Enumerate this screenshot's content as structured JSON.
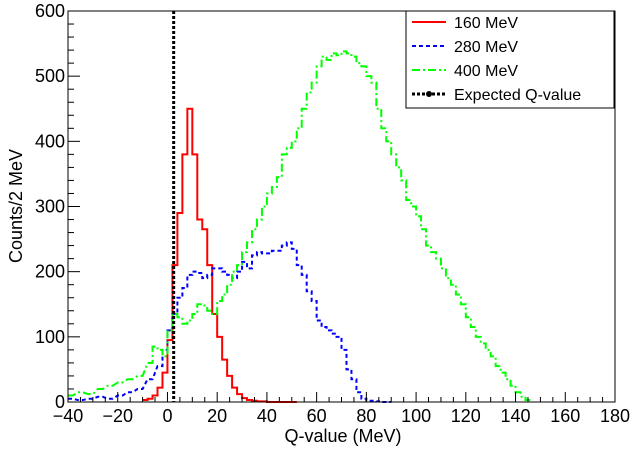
{
  "chart_data": {
    "type": "line",
    "step": true,
    "xlabel": "Q-value (MeV)",
    "ylabel": "Counts/2 MeV",
    "xlim": [
      -40,
      180
    ],
    "ylim": [
      0,
      600
    ],
    "x_ticks": [
      -40,
      -20,
      0,
      20,
      40,
      60,
      80,
      100,
      120,
      140,
      160,
      180
    ],
    "y_ticks": [
      0,
      100,
      200,
      300,
      400,
      500,
      600
    ],
    "grid": false,
    "legend_position": "top-right",
    "bin_width": 2,
    "vline": {
      "label": "Expected Q-value",
      "x": 2.5,
      "color": "#000000"
    },
    "series": [
      {
        "name": "160 MeV",
        "color": "#ff0000",
        "dash": "solid",
        "x": [
          -10,
          -8,
          -6,
          -4,
          -2,
          0,
          2,
          4,
          6,
          8,
          10,
          12,
          14,
          16,
          18,
          20,
          22,
          24,
          26,
          28,
          30,
          32,
          34,
          36,
          38,
          40,
          42,
          44,
          46,
          48,
          50
        ],
        "values": [
          3,
          5,
          10,
          22,
          45,
          95,
          210,
          290,
          380,
          450,
          380,
          280,
          265,
          210,
          135,
          100,
          65,
          40,
          22,
          12,
          6,
          3,
          2,
          1,
          1,
          0,
          0,
          0,
          0,
          0,
          0
        ]
      },
      {
        "name": "280 MeV",
        "color": "#0000ff",
        "dash": "dashed",
        "x": [
          -40,
          -36,
          -32,
          -28,
          -24,
          -20,
          -16,
          -12,
          -8,
          -4,
          -2,
          0,
          2,
          4,
          6,
          8,
          10,
          12,
          14,
          16,
          18,
          20,
          22,
          24,
          26,
          28,
          30,
          32,
          34,
          36,
          38,
          40,
          42,
          44,
          46,
          48,
          50,
          52,
          54,
          56,
          58,
          60,
          62,
          64,
          66,
          68,
          70,
          72,
          74,
          76,
          78,
          80,
          82,
          84,
          86,
          88
        ],
        "values": [
          5,
          3,
          5,
          8,
          5,
          10,
          15,
          20,
          35,
          55,
          80,
          110,
          135,
          160,
          175,
          195,
          200,
          198,
          190,
          195,
          205,
          205,
          200,
          195,
          190,
          200,
          215,
          205,
          225,
          230,
          228,
          228,
          232,
          232,
          240,
          245,
          235,
          210,
          195,
          170,
          155,
          125,
          115,
          110,
          105,
          100,
          80,
          50,
          35,
          15,
          5,
          2,
          2,
          1,
          0,
          0
        ]
      },
      {
        "name": "400 MeV",
        "color": "#00ff00",
        "dash": "dashdot",
        "x": [
          -40,
          -36,
          -32,
          -28,
          -24,
          -20,
          -16,
          -12,
          -8,
          -6,
          -4,
          -2,
          0,
          2,
          4,
          6,
          8,
          10,
          12,
          14,
          16,
          18,
          20,
          22,
          24,
          26,
          28,
          30,
          32,
          34,
          36,
          38,
          40,
          42,
          44,
          46,
          48,
          50,
          52,
          54,
          56,
          58,
          60,
          62,
          64,
          66,
          68,
          70,
          72,
          74,
          76,
          78,
          80,
          82,
          84,
          86,
          88,
          90,
          92,
          94,
          96,
          98,
          100,
          102,
          104,
          106,
          108,
          110,
          112,
          114,
          116,
          118,
          120,
          122,
          124,
          126,
          128,
          130,
          132,
          134,
          136,
          138,
          140,
          142,
          144
        ],
        "values": [
          10,
          15,
          12,
          20,
          25,
          30,
          35,
          40,
          60,
          85,
          80,
          70,
          110,
          135,
          130,
          120,
          125,
          135,
          150,
          148,
          140,
          135,
          155,
          165,
          180,
          200,
          210,
          230,
          245,
          265,
          280,
          300,
          320,
          330,
          345,
          380,
          390,
          400,
          420,
          450,
          475,
          490,
          515,
          530,
          525,
          535,
          532,
          538,
          535,
          530,
          520,
          515,
          500,
          490,
          450,
          420,
          400,
          380,
          360,
          340,
          310,
          300,
          285,
          265,
          240,
          230,
          220,
          205,
          190,
          180,
          165,
          150,
          130,
          115,
          100,
          90,
          80,
          70,
          55,
          45,
          35,
          25,
          15,
          8,
          3
        ]
      }
    ]
  }
}
